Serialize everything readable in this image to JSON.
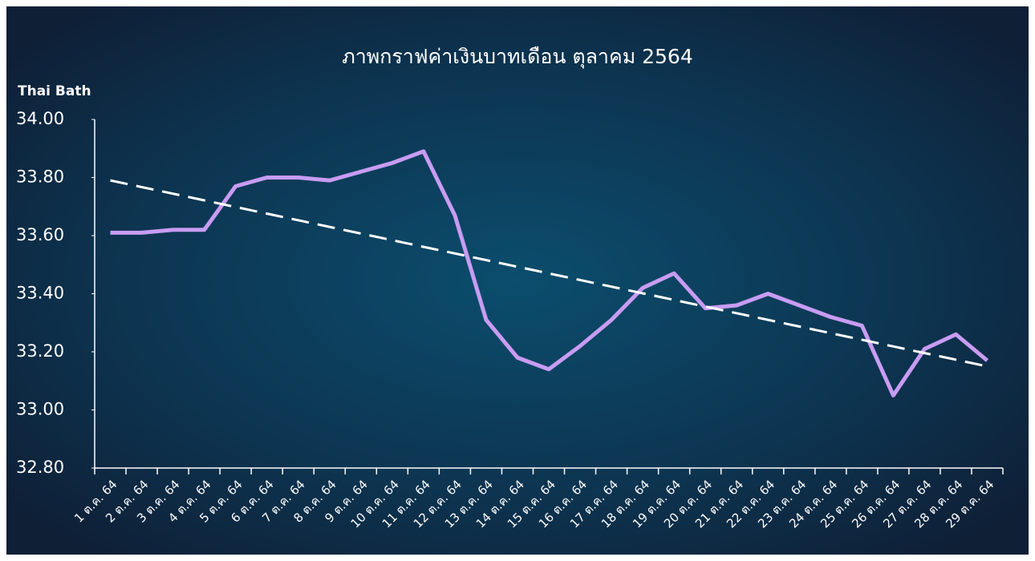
{
  "chart_data": {
    "type": "line",
    "title": "ภาพกราฟค่าเงินบาทเดือน ตุลาคม 2564",
    "y_axis_label": "Thai Bath",
    "categories": [
      "1 ต.ค. 64",
      "2 ต.ค. 64",
      "3 ต.ค. 64",
      "4 ต.ค. 64",
      "5 ต.ค. 64",
      "6 ต.ค. 64",
      "7 ต.ค. 64",
      "8 ต.ค. 64",
      "9 ต.ค. 64",
      "10 ต.ค. 64",
      "11 ต.ค. 64",
      "12 ต.ค. 64",
      "13 ต.ค. 64",
      "14 ต.ค. 64",
      "15 ต.ค. 64",
      "16 ต.ค. 64",
      "17 ต.ค. 64",
      "18 ต.ค. 64",
      "19 ต.ค. 64",
      "20 ต.ค. 64",
      "21 ต.ค. 64",
      "22 ต.ค. 64",
      "23 ต.ค. 64",
      "24 ต.ค. 64",
      "25 ต.ค. 64",
      "26 ต.ค. 64",
      "27 ต.ค. 64",
      "28 ต.ค. 64",
      "29 ต.ค. 64"
    ],
    "values": [
      33.61,
      33.61,
      33.62,
      33.62,
      33.77,
      33.8,
      33.8,
      33.79,
      33.82,
      33.85,
      33.89,
      33.67,
      33.31,
      33.18,
      33.14,
      33.22,
      33.31,
      33.42,
      33.47,
      33.35,
      33.36,
      33.4,
      33.36,
      33.32,
      33.29,
      33.05,
      33.21,
      33.26,
      33.17
    ],
    "color": "#c89cf2",
    "trend": [
      33.79,
      33.15
    ],
    "trend_color": "#ffffff",
    "ylim": [
      32.8,
      34.0
    ],
    "yticks": [
      {
        "value": 32.8,
        "label": "32.80"
      },
      {
        "value": 33.0,
        "label": "33.00"
      },
      {
        "value": 33.2,
        "label": "33.20"
      },
      {
        "value": 33.4,
        "label": "33.40"
      },
      {
        "value": 33.6,
        "label": "33.60"
      },
      {
        "value": 33.8,
        "label": "33.80"
      },
      {
        "value": 34.0,
        "label": "34.00"
      }
    ]
  }
}
